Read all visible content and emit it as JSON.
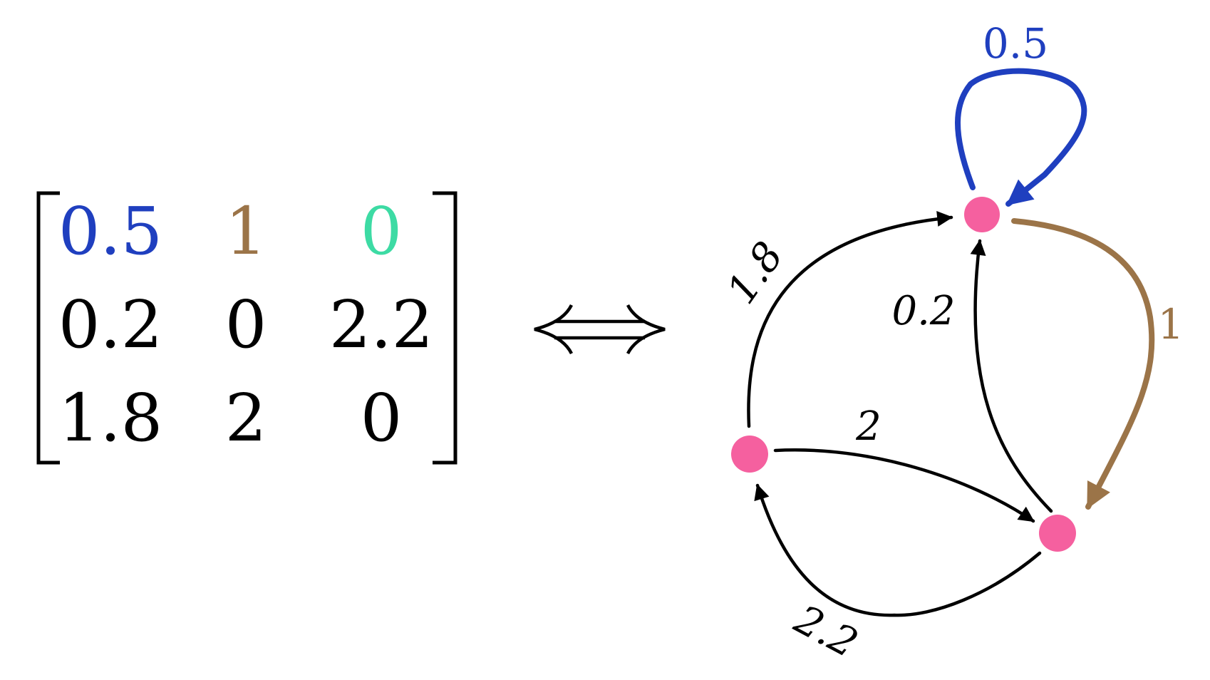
{
  "colors": {
    "blue": "#1f3fbf",
    "brown": "#9b7448",
    "green": "#3ddba4",
    "black": "#000000",
    "node": "#f5609f"
  },
  "matrix": {
    "rows": [
      [
        "0.5",
        "1",
        "0"
      ],
      [
        "0.2",
        "0",
        "2.2"
      ],
      [
        "1.8",
        "2",
        "0"
      ]
    ]
  },
  "equivalence_symbol": "⟺",
  "graph": {
    "edge_labels": {
      "self_loop": "0.5",
      "top_to_right": "1",
      "right_to_top": "0.2",
      "left_to_top": "1.8",
      "left_to_right": "2",
      "right_to_left": "2.2"
    }
  }
}
